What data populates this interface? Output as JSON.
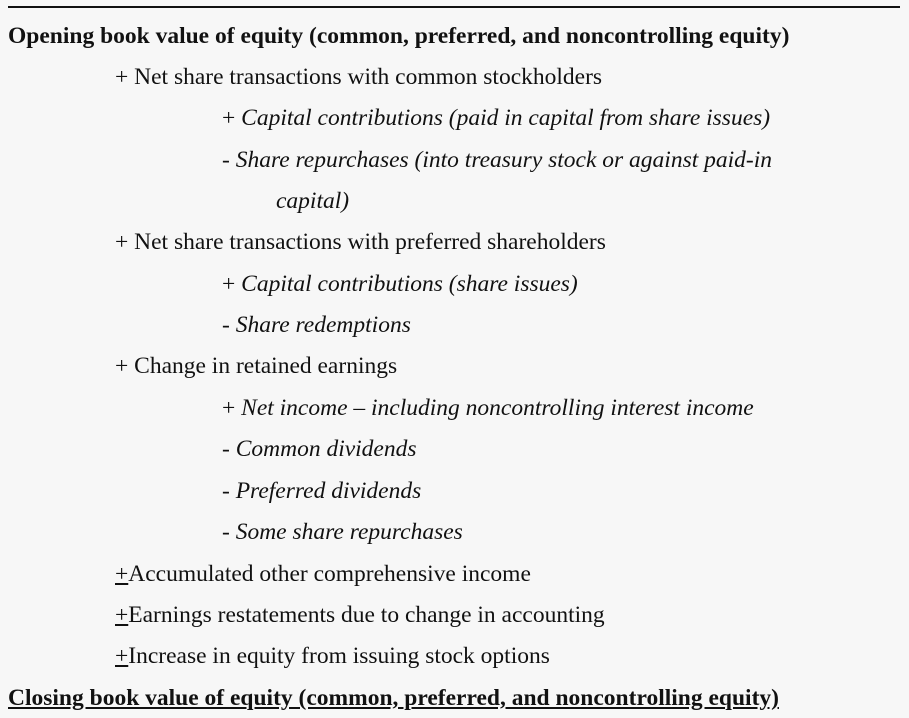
{
  "opening": "Opening book value of equity (common, preferred, and noncontrolling equity)",
  "items": [
    {
      "prefix": "+",
      "text": "Net share transactions with common stockholders"
    },
    {
      "prefix": "+",
      "text": "Capital contributions (paid in capital from share issues)"
    },
    {
      "prefix": "-",
      "text": "Share repurchases (into treasury stock or against paid-in"
    },
    {
      "text": "capital)"
    },
    {
      "prefix": "+",
      "text": "Net share transactions with preferred shareholders"
    },
    {
      "prefix": "+",
      "text": "Capital contributions (share issues)"
    },
    {
      "prefix": "-",
      "text": "Share redemptions"
    },
    {
      "prefix": "+",
      "text": "Change in retained earnings"
    },
    {
      "prefix": "+",
      "text": "Net income – including noncontrolling interest income"
    },
    {
      "prefix": "-",
      "text": "Common dividends"
    },
    {
      "prefix": "-",
      "text": "Preferred dividends"
    },
    {
      "prefix": "-",
      "text": "Some share repurchases"
    },
    {
      "prefix": "+",
      "text": "Accumulated other comprehensive income"
    },
    {
      "prefix": "+",
      "text": "Earnings restatements due to change in accounting"
    },
    {
      "prefix": "+",
      "text": "Increase in equity from issuing stock options"
    }
  ],
  "closing": "Closing book value of equity (common, preferred, and noncontrolling equity)"
}
